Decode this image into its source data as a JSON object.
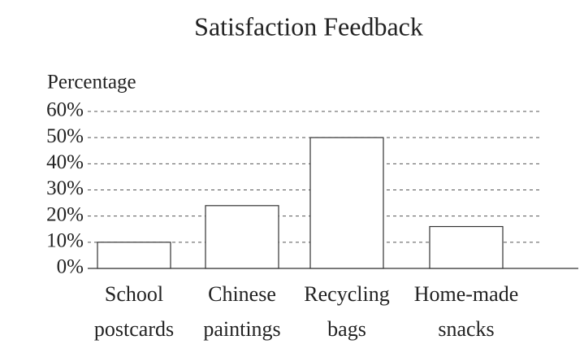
{
  "chart_data": {
    "type": "bar",
    "title": "Satisfaction Feedback",
    "y_label": "Percentage",
    "categories": [
      "School postcards",
      "Chinese paintings",
      "Recycling bags",
      "Home-made snacks"
    ],
    "values": [
      10,
      24,
      50,
      16
    ],
    "color": "#ffffff",
    "ylim": [
      0,
      60
    ],
    "yticks": [
      {
        "value": 0,
        "label": "0%"
      },
      {
        "value": 10,
        "label": "10%"
      },
      {
        "value": 20,
        "label": "20%"
      },
      {
        "value": 30,
        "label": "30%"
      },
      {
        "value": 40,
        "label": "40%"
      },
      {
        "value": 50,
        "label": "50%"
      },
      {
        "value": 60,
        "label": "60%"
      }
    ],
    "grid": true
  }
}
